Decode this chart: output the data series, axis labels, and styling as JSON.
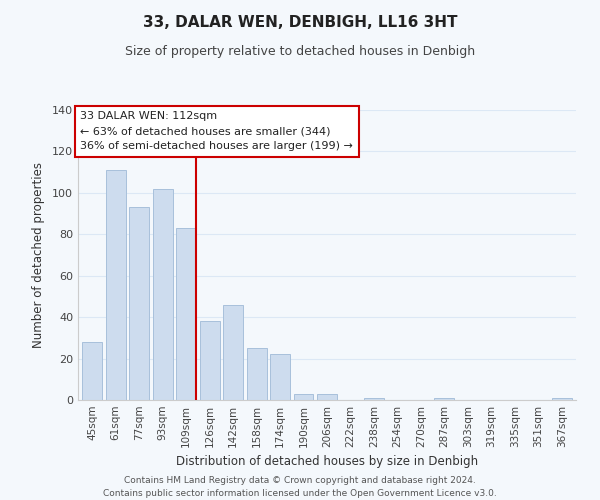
{
  "title": "33, DALAR WEN, DENBIGH, LL16 3HT",
  "subtitle": "Size of property relative to detached houses in Denbigh",
  "xlabel": "Distribution of detached houses by size in Denbigh",
  "ylabel": "Number of detached properties",
  "bar_labels": [
    "45sqm",
    "61sqm",
    "77sqm",
    "93sqm",
    "109sqm",
    "126sqm",
    "142sqm",
    "158sqm",
    "174sqm",
    "190sqm",
    "206sqm",
    "222sqm",
    "238sqm",
    "254sqm",
    "270sqm",
    "287sqm",
    "303sqm",
    "319sqm",
    "335sqm",
    "351sqm",
    "367sqm"
  ],
  "bar_values": [
    28,
    111,
    93,
    102,
    83,
    38,
    46,
    25,
    22,
    3,
    3,
    0,
    1,
    0,
    0,
    1,
    0,
    0,
    0,
    0,
    1
  ],
  "bar_color": "#cddcee",
  "bar_edge_color": "#a8c0db",
  "vline_x_index": 4,
  "vline_color": "#cc0000",
  "ylim": [
    0,
    140
  ],
  "yticks": [
    0,
    20,
    40,
    60,
    80,
    100,
    120,
    140
  ],
  "annotation_title": "33 DALAR WEN: 112sqm",
  "annotation_line1": "← 63% of detached houses are smaller (344)",
  "annotation_line2": "36% of semi-detached houses are larger (199) →",
  "footer_line1": "Contains HM Land Registry data © Crown copyright and database right 2024.",
  "footer_line2": "Contains public sector information licensed under the Open Government Licence v3.0.",
  "grid_color": "#dce8f5",
  "background_color": "#f4f8fc",
  "title_fontsize": 11,
  "subtitle_fontsize": 9,
  "axis_label_fontsize": 8.5,
  "tick_fontsize": 7.5,
  "annotation_fontsize": 8,
  "footer_fontsize": 6.5
}
